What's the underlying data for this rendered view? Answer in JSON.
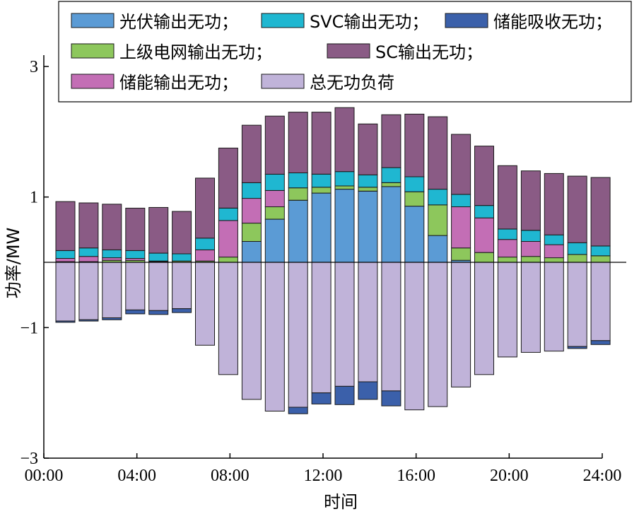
{
  "chart_data": {
    "type": "bar",
    "stacked": true,
    "xlabel": "时间",
    "ylabel": "功率/MW",
    "ylim": [
      -3,
      3
    ],
    "yticks": [
      -3,
      -1,
      1,
      3
    ],
    "ytick_labels": [
      "−3",
      "−1",
      "1",
      "3"
    ],
    "xlim": [
      0,
      24
    ],
    "xticks": [
      0,
      4,
      8,
      12,
      16,
      20,
      24
    ],
    "xtick_labels": [
      "00:00",
      "04:00",
      "08:00",
      "12:00",
      "16:00",
      "20:00",
      "24:00"
    ],
    "legend_position": "top",
    "x": [
      1,
      2,
      3,
      4,
      5,
      6,
      7,
      8,
      9,
      10,
      11,
      12,
      13,
      14,
      15,
      16,
      17,
      18,
      19,
      20,
      21,
      22,
      23,
      24
    ],
    "series": [
      {
        "name": "光伏输出无功；",
        "color": "#5b9bd5",
        "sign": "positive",
        "values": [
          0,
          0,
          0,
          0,
          0,
          0,
          0,
          0,
          0.32,
          0.66,
          0.95,
          1.06,
          1.12,
          1.09,
          1.16,
          0.86,
          0.41,
          0.03,
          0,
          0,
          0,
          0,
          0,
          0
        ]
      },
      {
        "name": "上级电网输出无功；",
        "color": "#8dc75c",
        "sign": "positive",
        "values": [
          0.01,
          0.01,
          0.03,
          0.03,
          0.01,
          0.02,
          0.02,
          0.08,
          0.28,
          0.19,
          0.19,
          0.09,
          0.05,
          0.06,
          0.06,
          0.22,
          0.47,
          0.19,
          0.15,
          0.08,
          0.09,
          0.07,
          0.12,
          0.1
        ]
      },
      {
        "name": "储能输出无功；",
        "color": "#c36eb5",
        "sign": "positive",
        "values": [
          0.05,
          0.08,
          0.04,
          0.03,
          0.01,
          0,
          0.17,
          0.56,
          0.38,
          0.25,
          0,
          0,
          0,
          0,
          0,
          0,
          0,
          0.63,
          0.53,
          0.27,
          0.23,
          0.2,
          0,
          0
        ]
      },
      {
        "name": "SVC输出无功；",
        "color": "#1fb7d1",
        "sign": "positive",
        "values": [
          0.12,
          0.13,
          0.12,
          0.12,
          0.12,
          0.11,
          0.18,
          0.19,
          0.24,
          0.25,
          0.23,
          0.2,
          0.22,
          0.19,
          0.23,
          0.23,
          0.24,
          0.19,
          0.19,
          0.16,
          0.17,
          0.15,
          0.18,
          0.15
        ]
      },
      {
        "name": "SC输出无功；",
        "color": "#8a5b85",
        "sign": "positive",
        "values": [
          0.75,
          0.69,
          0.7,
          0.65,
          0.7,
          0.65,
          0.92,
          0.92,
          0.88,
          0.89,
          0.93,
          0.95,
          0.98,
          0.78,
          0.81,
          0.96,
          1.11,
          0.92,
          0.91,
          0.97,
          0.91,
          0.94,
          1.02,
          1.05
        ]
      },
      {
        "name": "总无功负荷",
        "color": "#c0b3d9",
        "sign": "negative",
        "values": [
          -0.9,
          -0.88,
          -0.85,
          -0.73,
          -0.74,
          -0.71,
          -1.27,
          -1.72,
          -2.1,
          -2.28,
          -2.22,
          -2.0,
          -1.9,
          -1.83,
          -1.97,
          -2.26,
          -2.21,
          -1.91,
          -1.72,
          -1.45,
          -1.38,
          -1.36,
          -1.29,
          -1.2
        ]
      },
      {
        "name": "储能吸收无功；",
        "color": "#3b60aa",
        "sign": "negative",
        "values": [
          -0.02,
          -0.02,
          -0.03,
          -0.06,
          -0.06,
          -0.06,
          0,
          0,
          0,
          0,
          -0.1,
          -0.17,
          -0.28,
          -0.27,
          -0.23,
          0,
          0,
          0,
          0,
          0,
          0,
          0,
          -0.03,
          -0.06
        ]
      }
    ]
  },
  "legend": {
    "rows": [
      [
        "光伏输出无功；",
        "SVC输出无功；",
        "储能吸收无功；"
      ],
      [
        "上级电网输出无功；",
        "SC输出无功；"
      ],
      [
        "储能输出无功；",
        "总无功负荷"
      ]
    ]
  }
}
